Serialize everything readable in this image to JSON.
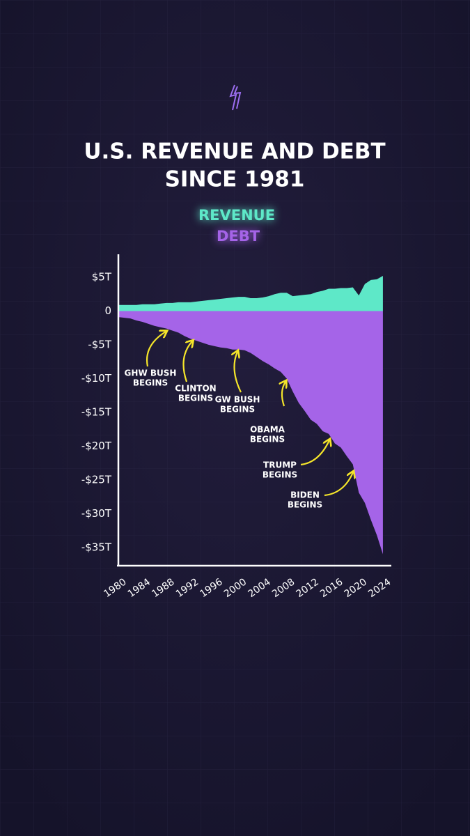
{
  "chart_data": {
    "type": "area",
    "title_lines": [
      "U.S. REVENUE AND DEBT",
      "SINCE 1981"
    ],
    "x": [
      1980,
      1981,
      1982,
      1983,
      1984,
      1985,
      1986,
      1987,
      1988,
      1989,
      1990,
      1991,
      1992,
      1993,
      1994,
      1995,
      1996,
      1997,
      1998,
      1999,
      2000,
      2001,
      2002,
      2003,
      2004,
      2005,
      2006,
      2007,
      2008,
      2009,
      2010,
      2011,
      2012,
      2013,
      2014,
      2015,
      2016,
      2017,
      2018,
      2019,
      2020,
      2021,
      2022,
      2023,
      2024
    ],
    "series": [
      {
        "name": "REVENUE",
        "color": "#5ee8c8",
        "values": [
          0.9,
          0.9,
          0.9,
          0.9,
          1.0,
          1.0,
          1.0,
          1.1,
          1.2,
          1.2,
          1.3,
          1.3,
          1.3,
          1.4,
          1.5,
          1.6,
          1.7,
          1.8,
          1.9,
          2.0,
          2.1,
          2.1,
          1.9,
          1.9,
          2.0,
          2.2,
          2.5,
          2.7,
          2.7,
          2.2,
          2.3,
          2.4,
          2.5,
          2.8,
          3.0,
          3.3,
          3.3,
          3.4,
          3.4,
          3.5,
          2.3,
          4.0,
          4.6,
          4.7,
          5.2
        ]
      },
      {
        "name": "DEBT",
        "color": "#a564e8",
        "values": [
          -0.9,
          -1.0,
          -1.1,
          -1.4,
          -1.6,
          -1.9,
          -2.2,
          -2.4,
          -2.6,
          -2.9,
          -3.2,
          -3.7,
          -4.1,
          -4.4,
          -4.7,
          -5.0,
          -5.2,
          -5.4,
          -5.5,
          -5.7,
          -5.7,
          -5.8,
          -6.2,
          -6.8,
          -7.4,
          -7.9,
          -8.5,
          -9.0,
          -10.0,
          -11.9,
          -13.6,
          -14.8,
          -16.1,
          -16.7,
          -17.8,
          -18.2,
          -19.6,
          -20.2,
          -21.5,
          -22.7,
          -26.9,
          -28.4,
          -30.9,
          -33.2,
          -36.0
        ]
      }
    ],
    "xlim": [
      1980,
      2025.4
    ],
    "xticks": [
      1980,
      1984,
      1988,
      1992,
      1996,
      2000,
      2004,
      2008,
      2012,
      2016,
      2020,
      2024
    ],
    "ylim": [
      -37.7,
      8.4
    ],
    "yticks": [
      {
        "value": 5,
        "label": "$5T"
      },
      0,
      {
        "value": -5,
        "label": "-$5T"
      },
      {
        "value": -10,
        "label": "-$10T"
      },
      {
        "value": -15,
        "label": "-$15T"
      },
      {
        "value": -20,
        "label": "-$20T"
      },
      {
        "value": -25,
        "label": "-$25T"
      },
      {
        "value": -30,
        "label": "-$30T"
      },
      {
        "value": -35,
        "label": "-$35T"
      }
    ],
    "annotations": [
      {
        "lines": [
          "GHW BUSH",
          "BEGINS"
        ]
      },
      {
        "lines": [
          "CLINTON",
          "BEGINS"
        ]
      },
      {
        "lines": [
          "GW BUSH",
          "BEGINS"
        ]
      },
      {
        "lines": [
          "OBAMA",
          "BEGINS"
        ]
      },
      {
        "lines": [
          "TRUMP",
          "BEGINS"
        ]
      },
      {
        "lines": [
          "BIDEN",
          "BEGINS"
        ]
      }
    ]
  }
}
